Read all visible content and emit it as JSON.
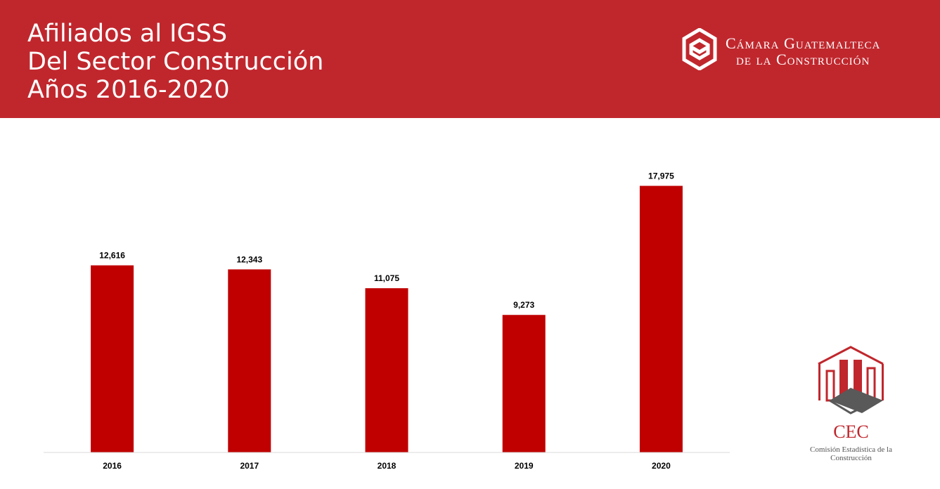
{
  "header": {
    "title_lines": [
      "Afiliados al IGSS",
      "Del Sector Construcción",
      "Años 2016-2020"
    ],
    "brand_line1": "Cámara Guatemalteca",
    "brand_line2": "de la Construcción"
  },
  "cec": {
    "abbr": "CEC",
    "name": "Comisión Estadística de la Construcción"
  },
  "colors": {
    "header_bg": "#c0272d",
    "bar": "#c00000"
  },
  "chart_data": {
    "type": "bar",
    "title": "",
    "xlabel": "",
    "ylabel": "",
    "categories": [
      "2016",
      "2017",
      "2018",
      "2019",
      "2020"
    ],
    "values": [
      12616,
      12343,
      11075,
      9273,
      17975
    ],
    "value_labels": [
      "12,616",
      "12,343",
      "11,075",
      "9,273",
      "17,975"
    ],
    "ylim": [
      0,
      20000
    ],
    "grid": false,
    "legend": "none"
  }
}
